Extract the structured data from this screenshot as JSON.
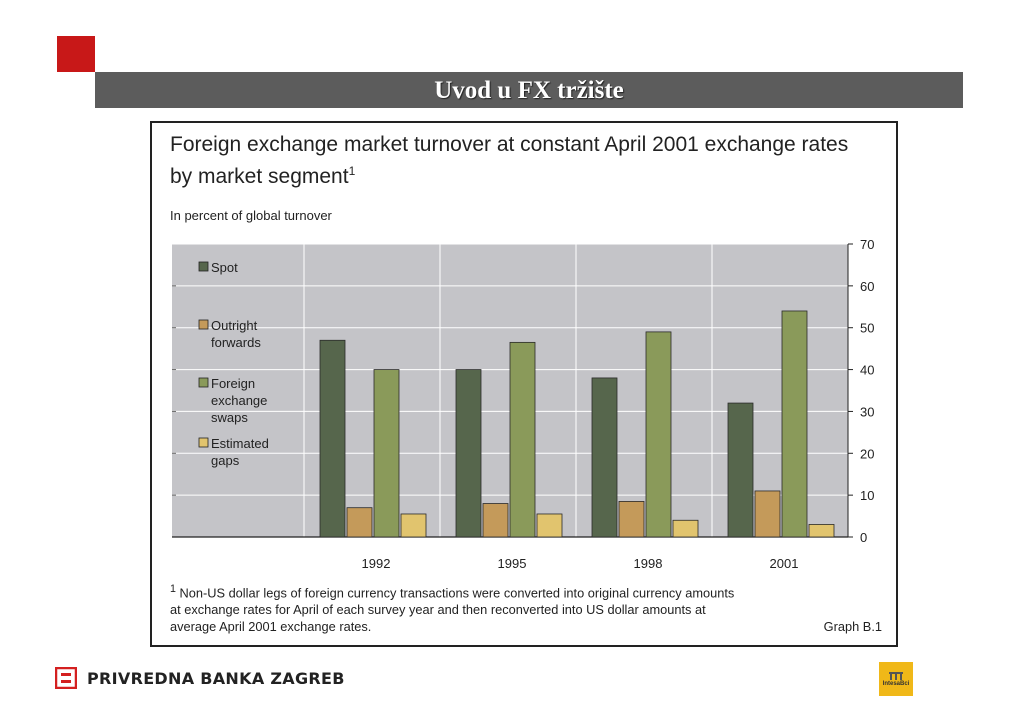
{
  "slide": {
    "title": "Uvod u FX tržište",
    "brand": "PRIVREDNA BANKA ZAGREB",
    "partner_logo_text": "IntesaBci"
  },
  "chart_data": {
    "type": "bar",
    "title": "Foreign exchange market turnover at constant April 2001 exchange rates by market segment",
    "title_footnote_marker": "1",
    "subtitle": "In percent of global turnover",
    "categories": [
      "1992",
      "1995",
      "1998",
      "2001"
    ],
    "series": [
      {
        "name": "Spot",
        "color": "#56664c",
        "values": [
          47,
          40,
          38,
          32
        ]
      },
      {
        "name": "Outright forwards",
        "color": "#c49a5a",
        "values": [
          7,
          8,
          8.5,
          11
        ]
      },
      {
        "name": "Foreign exchange swaps",
        "color": "#8a9a5a",
        "values": [
          40,
          46.5,
          49,
          54
        ]
      },
      {
        "name": "Estimated gaps",
        "color": "#e1c46e",
        "values": [
          5.5,
          5.5,
          4,
          3
        ]
      }
    ],
    "legend_labels": [
      [
        "Spot"
      ],
      [
        "Outright",
        "forwards"
      ],
      [
        "Foreign",
        "exchange",
        "swaps"
      ],
      [
        "Estimated",
        "gaps"
      ]
    ],
    "ylim": [
      0,
      70
    ],
    "yticks": [
      0,
      10,
      20,
      30,
      40,
      50,
      60,
      70
    ],
    "y_axis_side": "right",
    "legend_position": "left",
    "grid": true,
    "plot_background": "#c4c4c8",
    "footnote": {
      "marker": "1",
      "line1": "Non-US dollar legs of foreign currency transactions were converted into original currency amounts",
      "line2": "at exchange rates for April of each survey year and then reconverted into US dollar amounts at",
      "line3": "average April 2001 exchange rates.",
      "source": "Graph B.1"
    }
  }
}
